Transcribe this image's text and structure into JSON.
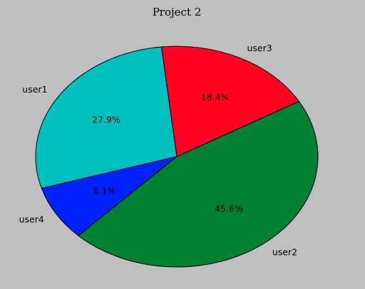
{
  "chart_data": {
    "type": "pie",
    "title": "Project 2",
    "start_angle_deg": 30,
    "direction": "counterclockwise",
    "slices": [
      {
        "label": "user3",
        "value": 18.4,
        "pct_text": "18.4%",
        "color": "#ff0022"
      },
      {
        "label": "user1",
        "value": 27.9,
        "pct_text": "27.9%",
        "color": "#00bfbf"
      },
      {
        "label": "user4",
        "value": 8.1,
        "pct_text": "8.1%",
        "color": "#0022ff"
      },
      {
        "label": "user2",
        "value": 45.6,
        "pct_text": "45.6%",
        "color": "#008033"
      }
    ],
    "edge_color": "#000000",
    "background": "#bfbfbf"
  }
}
